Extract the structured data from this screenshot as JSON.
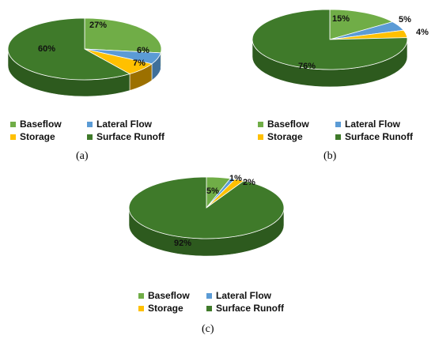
{
  "chart_data": [
    {
      "type": "pie",
      "panel": "(a)",
      "categories": [
        "Baseflow",
        "Lateral Flow",
        "Storage",
        "Surface Runoff"
      ],
      "values": [
        27,
        6,
        7,
        60
      ],
      "labels": [
        "27%",
        "6%",
        "7%",
        "60%"
      ],
      "legend_position": "bottom"
    },
    {
      "type": "pie",
      "panel": "(b)",
      "categories": [
        "Baseflow",
        "Lateral Flow",
        "Storage",
        "Surface Runoff"
      ],
      "values": [
        15,
        5,
        4,
        76
      ],
      "labels": [
        "15%",
        "5%",
        "4%",
        "76%"
      ],
      "legend_position": "bottom"
    },
    {
      "type": "pie",
      "panel": "(c)",
      "categories": [
        "Baseflow",
        "Lateral Flow",
        "Storage",
        "Surface Runoff"
      ],
      "values": [
        5,
        1,
        2,
        92
      ],
      "labels": [
        "5%",
        "1%",
        "2%",
        "92%"
      ],
      "legend_position": "bottom"
    }
  ],
  "colors": {
    "Baseflow": "#70ad47",
    "Lateral Flow": "#5b9bd5",
    "Storage": "#ffc000",
    "Surface Runoff": "#3f7a2a"
  },
  "side_colors": {
    "Baseflow": "#4e7d32",
    "Lateral Flow": "#3f6f9a",
    "Storage": "#9c7000",
    "Surface Runoff": "#2d5a1e"
  }
}
